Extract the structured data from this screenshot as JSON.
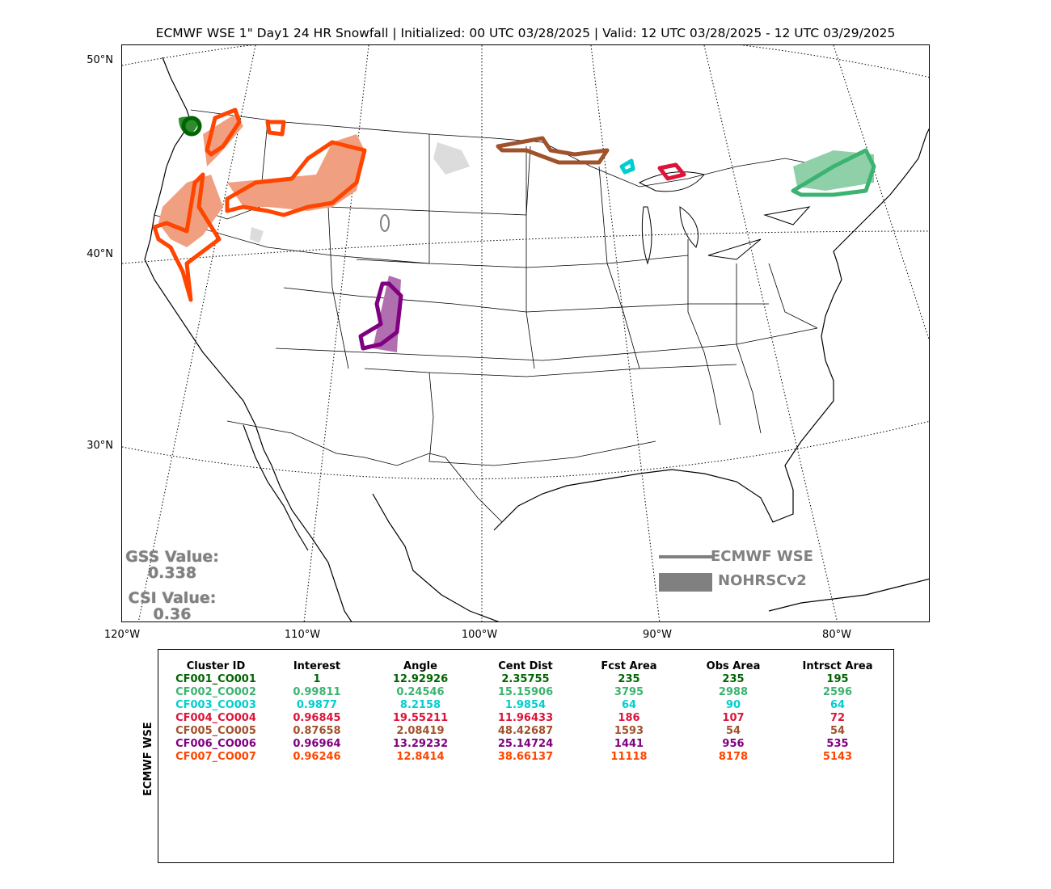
{
  "title": "ECMWF WSE 1\" Day1 24 HR Snowfall | Initialized: 00 UTC 03/28/2025 | Valid: 12 UTC 03/28/2025 - 12 UTC 03/29/2025",
  "lat_labels": [
    "50°N",
    "40°N",
    "30°N"
  ],
  "lon_labels": [
    "120°W",
    "110°W",
    "100°W",
    "90°W",
    "80°W"
  ],
  "scores": {
    "gss_label": "GSS Value:",
    "gss_value": "0.338",
    "csi_label": "CSI Value:",
    "csi_value": "0.36"
  },
  "legend": {
    "forecast": "ECMWF WSE",
    "observed": "NOHRSCv2"
  },
  "colors": {
    "forecast_outline": "#808080",
    "observed_fill": "#808080"
  },
  "stats_table": {
    "side_label": "ECMWF WSE",
    "headers": [
      "Cluster ID",
      "Interest",
      "Angle",
      "Cent Dist",
      "Fcst Area",
      "Obs Area",
      "Intrsct Area"
    ],
    "rows": [
      {
        "color": "#006400",
        "cells": [
          "CF001_CO001",
          "1",
          "12.92926",
          "2.35755",
          "235",
          "235",
          "195"
        ]
      },
      {
        "color": "#3cb371",
        "cells": [
          "CF002_CO002",
          "0.99811",
          "0.24546",
          "15.15906",
          "3795",
          "2988",
          "2596"
        ]
      },
      {
        "color": "#00ced1",
        "cells": [
          "CF003_CO003",
          "0.9877",
          "8.2158",
          "1.9854",
          "64",
          "90",
          "64"
        ]
      },
      {
        "color": "#dc143c",
        "cells": [
          "CF004_CO004",
          "0.96845",
          "19.55211",
          "11.96433",
          "186",
          "107",
          "72"
        ]
      },
      {
        "color": "#a0522d",
        "cells": [
          "CF005_CO005",
          "0.87658",
          "2.08419",
          "48.42687",
          "1593",
          "54",
          "54"
        ]
      },
      {
        "color": "#800080",
        "cells": [
          "CF006_CO006",
          "0.96964",
          "13.29232",
          "25.14724",
          "1441",
          "956",
          "535"
        ]
      },
      {
        "color": "#ff4500",
        "cells": [
          "CF007_CO007",
          "0.96246",
          "12.8414",
          "38.66137",
          "11118",
          "8178",
          "5143"
        ]
      }
    ]
  }
}
